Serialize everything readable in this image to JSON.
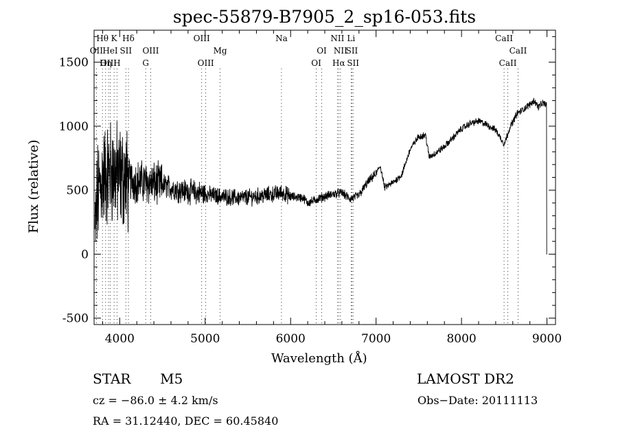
{
  "chart_data": {
    "type": "line",
    "title": "spec-55879-B7905_2_sp16-053.fits",
    "xlabel": "Wavelength (Å)",
    "ylabel": "Flux (relative)",
    "xlim": [
      3700,
      9100
    ],
    "ylim": [
      -550,
      1750
    ],
    "xticks": [
      4000,
      5000,
      6000,
      7000,
      8000,
      9000
    ],
    "yticks": [
      -500,
      0,
      500,
      1000,
      1500
    ],
    "grid": false,
    "spectrum_color": "#000000",
    "line_markers": [
      {
        "label": "Hθ",
        "x": 3798,
        "row": 0
      },
      {
        "label": "K",
        "x": 3934,
        "row": 0
      },
      {
        "label": "Hδ",
        "x": 4102,
        "row": 0
      },
      {
        "label": "OIII",
        "x": 4959,
        "row": 0
      },
      {
        "label": "Na",
        "x": 5893,
        "row": 0
      },
      {
        "label": "NII",
        "x": 6548,
        "row": 0
      },
      {
        "label": "Li",
        "x": 6708,
        "row": 0
      },
      {
        "label": "CaII",
        "x": 8498,
        "row": 0
      },
      {
        "label": "OII",
        "x": 3727,
        "row": 1
      },
      {
        "label": "HeI",
        "x": 3889,
        "row": 1
      },
      {
        "label": "SII",
        "x": 4072,
        "row": 1
      },
      {
        "label": "OIII",
        "x": 4363,
        "row": 1
      },
      {
        "label": "Mg",
        "x": 5175,
        "row": 1
      },
      {
        "label": "OI",
        "x": 6364,
        "row": 1
      },
      {
        "label": "NII",
        "x": 6584,
        "row": 1
      },
      {
        "label": "SII",
        "x": 6717,
        "row": 1
      },
      {
        "label": "CaII",
        "x": 8662,
        "row": 1
      },
      {
        "label": "OIII",
        "x": 3869,
        "row": 2
      },
      {
        "label": "Hη",
        "x": 3835,
        "row": 2
      },
      {
        "label": "H",
        "x": 3968,
        "row": 2
      },
      {
        "label": "G",
        "x": 4304,
        "row": 2
      },
      {
        "label": "OIII",
        "x": 5007,
        "row": 2
      },
      {
        "label": "OI",
        "x": 6300,
        "row": 2
      },
      {
        "label": "Hα",
        "x": 6563,
        "row": 2
      },
      {
        "label": "SII",
        "x": 6731,
        "row": 2
      },
      {
        "label": "CaII",
        "x": 8542,
        "row": 2
      }
    ],
    "spectrum_anchors": [
      [
        3710,
        150
      ],
      [
        3740,
        450
      ],
      [
        3800,
        600
      ],
      [
        3900,
        650
      ],
      [
        4000,
        600
      ],
      [
        4100,
        580
      ],
      [
        4200,
        570
      ],
      [
        4300,
        560
      ],
      [
        4400,
        550
      ],
      [
        4500,
        540
      ],
      [
        4700,
        500
      ],
      [
        4900,
        480
      ],
      [
        5000,
        470
      ],
      [
        5200,
        450
      ],
      [
        5400,
        440
      ],
      [
        5600,
        450
      ],
      [
        5800,
        470
      ],
      [
        5900,
        480
      ],
      [
        6000,
        450
      ],
      [
        6150,
        440
      ],
      [
        6200,
        400
      ],
      [
        6350,
        440
      ],
      [
        6500,
        470
      ],
      [
        6600,
        480
      ],
      [
        6700,
        430
      ],
      [
        6800,
        460
      ],
      [
        6900,
        560
      ],
      [
        7000,
        630
      ],
      [
        7050,
        690
      ],
      [
        7100,
        520
      ],
      [
        7200,
        560
      ],
      [
        7300,
        620
      ],
      [
        7400,
        820
      ],
      [
        7500,
        920
      ],
      [
        7580,
        930
      ],
      [
        7620,
        760
      ],
      [
        7700,
        790
      ],
      [
        7800,
        840
      ],
      [
        7900,
        910
      ],
      [
        8000,
        980
      ],
      [
        8100,
        1020
      ],
      [
        8200,
        1040
      ],
      [
        8300,
        1010
      ],
      [
        8400,
        970
      ],
      [
        8500,
        860
      ],
      [
        8560,
        980
      ],
      [
        8650,
        1100
      ],
      [
        8700,
        1120
      ],
      [
        8800,
        1170
      ],
      [
        8850,
        1200
      ],
      [
        8900,
        1150
      ],
      [
        8950,
        1180
      ],
      [
        8990,
        1170
      ]
    ]
  },
  "labels": {
    "object_type": "STAR",
    "subclass": "M5",
    "survey": "LAMOST DR2",
    "cz": "cz = −86.0 ± 4.2 km/s",
    "obs_date": "Obs−Date: 20111113",
    "radec": "RA =  31.12440, DEC =  60.45840"
  }
}
